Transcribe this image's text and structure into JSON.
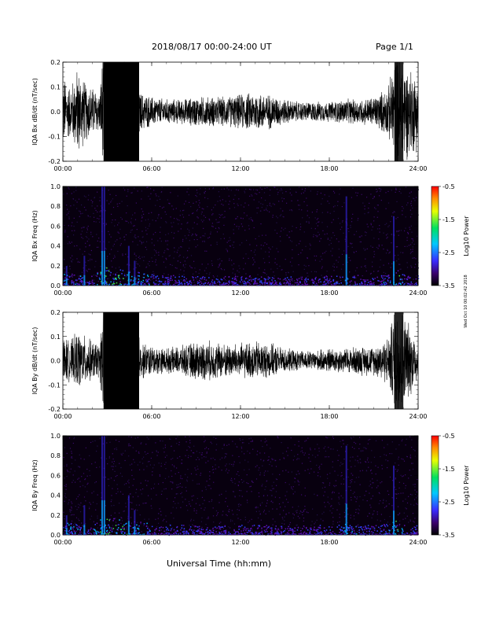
{
  "header": {
    "title": "2018/08/17  00:00-24:00 UT",
    "page": "Page 1/1"
  },
  "footer": {
    "xlabel": "Universal Time (hh:mm)",
    "side_note": "Wed Oct 10 00:02:42 2018"
  },
  "chart_data": [
    {
      "type": "line",
      "ylabel": "IQA Bx dB/dt (nT/sec)",
      "ylim": [
        -0.2,
        0.2
      ],
      "y_ticks": [
        "-0.2",
        "-0.1",
        "0.0",
        "0.1",
        "0.2"
      ],
      "x_ticks": [
        "00:00",
        "06:00",
        "12:00",
        "18:00",
        "24:00"
      ],
      "xlim": [
        0,
        24
      ],
      "envelope": {
        "hours": [
          0,
          0.5,
          1,
          1.5,
          2,
          2.5,
          2.7,
          3,
          4,
          5,
          5.2,
          6,
          7,
          8,
          9,
          10,
          11,
          12,
          13,
          14,
          15,
          16,
          17,
          18,
          19,
          20,
          21,
          22,
          22.5,
          23,
          24
        ],
        "amplitude": [
          0.15,
          0.1,
          0.18,
          0.12,
          0.1,
          0.08,
          0.25,
          0.25,
          0.25,
          0.25,
          0.08,
          0.06,
          0.05,
          0.05,
          0.06,
          0.06,
          0.06,
          0.07,
          0.08,
          0.07,
          0.05,
          0.04,
          0.04,
          0.04,
          0.05,
          0.05,
          0.06,
          0.1,
          0.25,
          0.2,
          0.15
        ]
      }
    },
    {
      "type": "heatmap",
      "ylabel": "IQA Bx Freq (Hz)",
      "ylim": [
        0,
        1.0
      ],
      "y_ticks": [
        "0.0",
        "0.2",
        "0.4",
        "0.6",
        "0.8",
        "1.0"
      ],
      "x_ticks": [
        "00:00",
        "06:00",
        "12:00",
        "18:00",
        "24:00"
      ],
      "xlim": [
        0,
        24
      ],
      "colorbar": {
        "label": "Log10 Power",
        "ticks": [
          "-0.5",
          "-1.5",
          "-2.5",
          "-3.5"
        ],
        "range": [
          -3.5,
          -0.5
        ]
      }
    },
    {
      "type": "line",
      "ylabel": "IQA By dB/dt (nT/sec)",
      "ylim": [
        -0.2,
        0.2
      ],
      "y_ticks": [
        "-0.2",
        "-0.1",
        "0.0",
        "0.1",
        "0.2"
      ],
      "x_ticks": [
        "00:00",
        "06:00",
        "12:00",
        "18:00",
        "24:00"
      ],
      "xlim": [
        0,
        24
      ],
      "envelope": {
        "hours": [
          0,
          0.5,
          1,
          1.5,
          2,
          2.5,
          2.7,
          3,
          4,
          5,
          5.2,
          6,
          7,
          8,
          9,
          10,
          11,
          12,
          13,
          14,
          15,
          16,
          17,
          18,
          19,
          20,
          21,
          22,
          22.5,
          23,
          24
        ],
        "amplitude": [
          0.1,
          0.08,
          0.12,
          0.1,
          0.08,
          0.07,
          0.25,
          0.25,
          0.25,
          0.25,
          0.08,
          0.06,
          0.05,
          0.06,
          0.08,
          0.08,
          0.07,
          0.07,
          0.08,
          0.07,
          0.05,
          0.04,
          0.04,
          0.05,
          0.05,
          0.06,
          0.06,
          0.1,
          0.25,
          0.2,
          0.08
        ]
      }
    },
    {
      "type": "heatmap",
      "ylabel": "IQA By Freq (Hz)",
      "ylim": [
        0,
        1.0
      ],
      "y_ticks": [
        "0.0",
        "0.2",
        "0.4",
        "0.6",
        "0.8",
        "1.0"
      ],
      "x_ticks": [
        "00:00",
        "06:00",
        "12:00",
        "18:00",
        "24:00"
      ],
      "xlim": [
        0,
        24
      ],
      "colorbar": {
        "label": "Log10 Power",
        "ticks": [
          "-0.5",
          "-1.5",
          "-2.5",
          "-3.5"
        ],
        "range": [
          -3.5,
          -0.5
        ]
      }
    }
  ]
}
